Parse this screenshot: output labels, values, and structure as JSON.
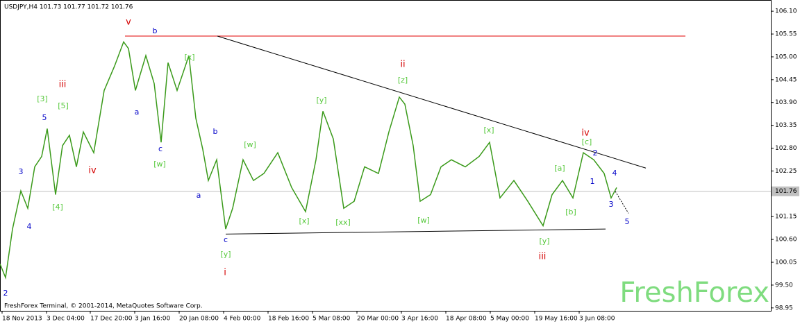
{
  "chart_data": {
    "type": "line",
    "header": "USDJPY,H4  101.73 101.77 101.72 101.76",
    "footer": "FreshForex Terminal, © 2001-2014, MetaQuotes Software Corp.",
    "watermark": "FreshForex",
    "xlim": [
      0,
      1110
    ],
    "xticks": [
      {
        "value": 3,
        "label": "18 Nov 2013"
      },
      {
        "value": 67,
        "label": "3 Dec 04:00"
      },
      {
        "value": 130,
        "label": "17 Dec 20:00"
      },
      {
        "value": 194,
        "label": "3 Jan 16:00"
      },
      {
        "value": 258,
        "label": "20 Jan 08:00"
      },
      {
        "value": 322,
        "label": "4 Feb 00:00"
      },
      {
        "value": 386,
        "label": "18 Feb 16:00"
      },
      {
        "value": 450,
        "label": "5 Mar 08:00"
      },
      {
        "value": 514,
        "label": "20 Mar 00:00"
      },
      {
        "value": 578,
        "label": "3 Apr 16:00"
      },
      {
        "value": 642,
        "label": "18 Apr 08:00"
      },
      {
        "value": 706,
        "label": "5 May 00:00"
      },
      {
        "value": 770,
        "label": "19 May 16:00"
      },
      {
        "value": 834,
        "label": "3 Jun 08:00"
      }
    ],
    "ylim": [
      98.88,
      106.37
    ],
    "yticks": [
      {
        "value": 106.1,
        "label": "106.10"
      },
      105.55,
      {
        "value": 105,
        "label": "105.00"
      },
      104.45,
      {
        "value": 103.9,
        "label": "103.90"
      },
      103.35,
      {
        "value": 102.8,
        "label": "102.80"
      },
      102.25,
      101.15,
      {
        "value": 100.6,
        "label": "100.60"
      },
      100.05,
      {
        "value": 99.5,
        "label": "99.50"
      },
      98.95
    ],
    "current_price": 101.76,
    "series": [
      {
        "name": "USDJPY",
        "color": "#3a9a1a",
        "x": [
          0,
          8,
          18,
          30,
          40,
          50,
          60,
          68,
          80,
          90,
          100,
          110,
          120,
          135,
          150,
          165,
          178,
          185,
          195,
          210,
          222,
          232,
          242,
          255,
          272,
          282,
          292,
          300,
          312,
          325,
          335,
          350,
          365,
          380,
          400,
          420,
          440,
          455,
          465,
          480,
          495,
          510,
          525,
          545,
          560,
          575,
          583,
          595,
          605,
          620,
          635,
          650,
          670,
          690,
          705,
          720,
          740,
          760,
          782,
          795,
          810,
          825,
          840,
          855,
          870,
          880,
          888
        ],
        "values": [
          100.01,
          99.68,
          100.85,
          101.77,
          101.35,
          102.35,
          102.6,
          103.27,
          101.68,
          102.86,
          103.11,
          102.35,
          103.19,
          102.69,
          104.19,
          104.78,
          105.36,
          105.2,
          104.19,
          105.03,
          104.36,
          102.94,
          104.86,
          104.19,
          105.03,
          103.52,
          102.77,
          102.02,
          102.52,
          100.85,
          101.35,
          102.52,
          102.02,
          102.19,
          102.69,
          101.85,
          101.27,
          102.52,
          103.69,
          103.02,
          101.35,
          101.52,
          102.35,
          102.19,
          103.19,
          104.03,
          103.86,
          102.86,
          101.52,
          101.68,
          102.35,
          102.52,
          102.35,
          102.6,
          102.94,
          101.6,
          102.02,
          101.52,
          100.93,
          101.68,
          102.02,
          101.6,
          102.69,
          102.52,
          102.19,
          101.6,
          101.85
        ]
      }
    ],
    "trend_lines": [
      {
        "color": "#e00000",
        "x": [
          180,
          987
        ],
        "y": [
          105.5,
          105.5
        ]
      },
      {
        "color": "#000000",
        "x": [
          313,
          930
        ],
        "y": [
          105.5,
          102.32
        ]
      },
      {
        "color": "#000000",
        "x": [
          325,
          872
        ],
        "y": [
          100.73,
          100.85
        ]
      },
      {
        "color": "#000000",
        "x": [
          886,
          905
        ],
        "y": [
          101.76,
          101.23
        ]
      }
    ],
    "annotations": [
      {
        "text": "v",
        "color": "#d40000"
      },
      {
        "text": "b",
        "color": "#0000c8"
      },
      {
        "text": "[x]",
        "color": "#55c83a"
      },
      {
        "text": "iii",
        "color": "#d40000"
      },
      {
        "text": "[3]",
        "color": "#55c83a"
      },
      {
        "text": "[5]",
        "color": "#55c83a"
      },
      {
        "text": "5",
        "color": "#0000c8"
      },
      {
        "text": "a",
        "color": "#0000c8"
      },
      {
        "text": "b",
        "color": "#0000c8"
      },
      {
        "text": "c",
        "color": "#0000c8"
      },
      {
        "text": "[w]",
        "color": "#55c83a"
      },
      {
        "text": "[w]",
        "color": "#55c83a"
      },
      {
        "text": "iv",
        "color": "#d40000"
      },
      {
        "text": "3",
        "color": "#0000c8"
      },
      {
        "text": "[4]",
        "color": "#55c83a"
      },
      {
        "text": "4",
        "color": "#0000c8"
      },
      {
        "text": "a",
        "color": "#0000c8"
      },
      {
        "text": "c",
        "color": "#0000c8"
      },
      {
        "text": "[y]",
        "color": "#55c83a"
      },
      {
        "text": "i",
        "color": "#d40000"
      },
      {
        "text": "2",
        "color": "#0000c8"
      },
      {
        "text": "[y]",
        "color": "#55c83a"
      },
      {
        "text": "[x]",
        "color": "#55c83a"
      },
      {
        "text": "[xx]",
        "color": "#55c83a"
      },
      {
        "text": "ii",
        "color": "#d40000"
      },
      {
        "text": "[z]",
        "color": "#55c83a"
      },
      {
        "text": "[w]",
        "color": "#55c83a"
      },
      {
        "text": "[x]",
        "color": "#55c83a"
      },
      {
        "text": "iv",
        "color": "#d40000"
      },
      {
        "text": "[c]",
        "color": "#55c83a"
      },
      {
        "text": "2",
        "color": "#0000c8"
      },
      {
        "text": "[a]",
        "color": "#55c83a"
      },
      {
        "text": "1",
        "color": "#0000c8"
      },
      {
        "text": "4",
        "color": "#0000c8"
      },
      {
        "text": "3",
        "color": "#0000c8"
      },
      {
        "text": "[b]",
        "color": "#55c83a"
      },
      {
        "text": "5",
        "color": "#0000c8"
      },
      {
        "text": "[y]",
        "color": "#55c83a"
      },
      {
        "text": "iii",
        "color": "#d40000"
      }
    ]
  }
}
